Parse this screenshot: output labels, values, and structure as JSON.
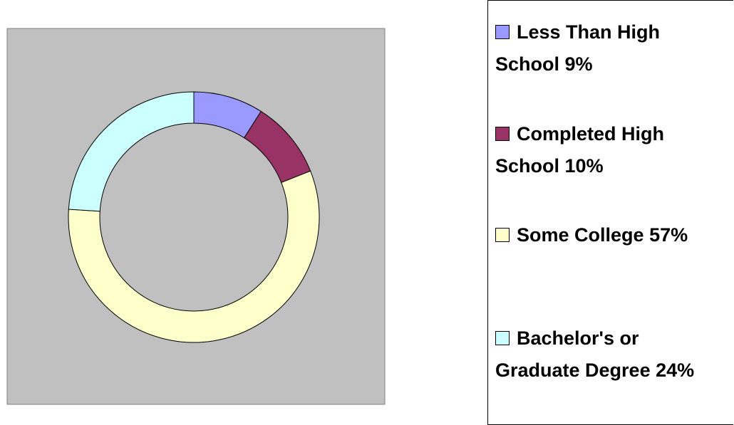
{
  "chart_data": {
    "type": "donut",
    "categories": [
      "Less Than High School",
      "Completed High School",
      "Some College",
      "Bachelor's or Graduate Degree"
    ],
    "values": [
      9,
      10,
      57,
      24
    ],
    "value_labels": [
      "9%",
      "10%",
      "57%",
      "24%"
    ],
    "colors": [
      "#9999ff",
      "#993366",
      "#ffffcc",
      "#ccffff"
    ],
    "legend": "right"
  }
}
